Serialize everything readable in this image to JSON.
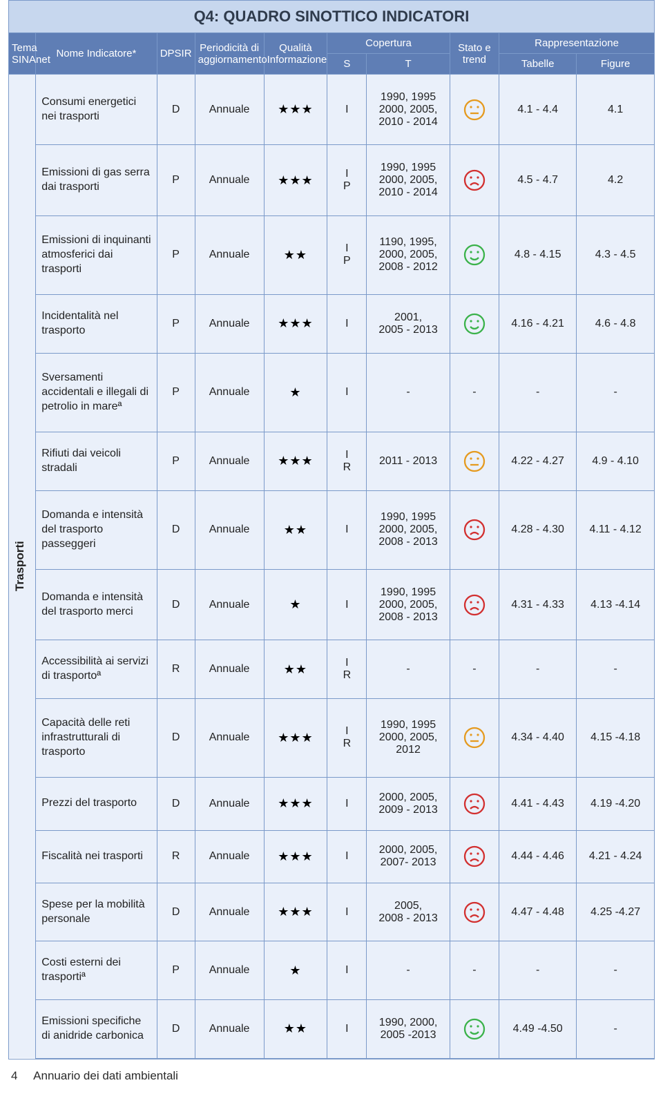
{
  "title": "Q4: QUADRO SINOTTICO INDICATORI",
  "headers": {
    "tema": "Tema SINAnet",
    "nome": "Nome Indicatore*",
    "dpsir": "DPSIR",
    "periodicita": "Periodicità di aggiornamento",
    "qualita": "Qualità Informazione",
    "copertura": "Copertura",
    "s": "S",
    "t": "T",
    "stato": "Stato e trend",
    "rappr": "Rappresentazione",
    "tabelle": "Tabelle",
    "figure": "Figure"
  },
  "theme": "Trasporti",
  "colors": {
    "good": "#3bb24a",
    "bad": "#d22f2f",
    "neutral": "#e59a1f"
  },
  "rows": [
    {
      "indicator": "Consumi energetici nei trasporti",
      "dpsir": "D",
      "period": "Annuale",
      "stars": 3,
      "s": "I",
      "t": "1990, 1995\n2000, 2005,\n2010 - 2014",
      "trend": "neutral",
      "tab": "4.1 - 4.4",
      "fig": "4.1"
    },
    {
      "indicator": "Emissioni di gas serra dai trasporti",
      "dpsir": "P",
      "period": "Annuale",
      "stars": 3,
      "s": "I\nP",
      "t": "1990, 1995\n2000, 2005,\n2010 - 2014",
      "trend": "bad",
      "tab": "4.5 - 4.7",
      "fig": "4.2"
    },
    {
      "indicator": "Emissioni di inquinanti atmosferici dai trasporti",
      "dpsir": "P",
      "period": "Annuale",
      "stars": 2,
      "s": "I\nP",
      "t": "1190, 1995,\n2000, 2005,\n2008 - 2012",
      "trend": "good",
      "tab": "4.8 - 4.15",
      "fig": "4.3 - 4.5"
    },
    {
      "indicator": "Incidentalità nel trasporto",
      "dpsir": "P",
      "period": "Annuale",
      "stars": 3,
      "s": "I",
      "t": "2001,\n2005 - 2013",
      "trend": "good",
      "tab": "4.16 - 4.21",
      "fig": "4.6 - 4.8"
    },
    {
      "indicator": "Sversamenti accidentali e illegali di petrolio in mareª",
      "dpsir": "P",
      "period": "Annuale",
      "stars": 1,
      "s": "I",
      "t": "-",
      "trend": "-",
      "tab": "-",
      "fig": "-"
    },
    {
      "indicator": "Rifiuti dai veicoli stradali",
      "dpsir": "P",
      "period": "Annuale",
      "stars": 3,
      "s": "I\nR",
      "t": "2011 - 2013",
      "trend": "neutral",
      "tab": "4.22 - 4.27",
      "fig": "4.9 - 4.10"
    },
    {
      "indicator": "Domanda e intensità del trasporto passeggeri",
      "dpsir": "D",
      "period": "Annuale",
      "stars": 2,
      "s": "I",
      "t": "1990, 1995\n2000, 2005,\n2008 - 2013",
      "trend": "bad",
      "tab": "4.28 - 4.30",
      "fig": "4.11 - 4.12"
    },
    {
      "indicator": "Domanda e intensità del trasporto merci",
      "dpsir": "D",
      "period": "Annuale",
      "stars": 1,
      "s": "I",
      "t": "1990, 1995\n2000, 2005,\n2008 - 2013",
      "trend": "bad",
      "tab": "4.31 - 4.33",
      "fig": "4.13 -4.14"
    },
    {
      "indicator": "Accessibilità ai servizi di trasportoª",
      "dpsir": "R",
      "period": "Annuale",
      "stars": 2,
      "s": "I\nR",
      "t": "-",
      "trend": "-",
      "tab": "-",
      "fig": "-"
    },
    {
      "indicator": "Capacità delle reti infrastrutturali di trasporto",
      "dpsir": "D",
      "period": "Annuale",
      "stars": 3,
      "s": "I\nR",
      "t": "1990, 1995\n2000, 2005,\n2012",
      "trend": "neutral",
      "tab": "4.34 - 4.40",
      "fig": "4.15 -4.18"
    },
    {
      "indicator": "Prezzi del trasporto",
      "dpsir": "D",
      "period": "Annuale",
      "stars": 3,
      "s": "I",
      "t": "2000, 2005,\n2009 - 2013",
      "trend": "bad",
      "tab": "4.41 - 4.43",
      "fig": "4.19 -4.20"
    },
    {
      "indicator": "Fiscalità nei trasporti",
      "dpsir": "R",
      "period": "Annuale",
      "stars": 3,
      "s": "I",
      "t": "2000, 2005,\n2007- 2013",
      "trend": "bad",
      "tab": "4.44 - 4.46",
      "fig": "4.21 - 4.24"
    },
    {
      "indicator": "Spese per la mobilità personale",
      "dpsir": "D",
      "period": "Annuale",
      "stars": 3,
      "s": "I",
      "t": "2005,\n2008 - 2013",
      "trend": "bad",
      "tab": "4.47 - 4.48",
      "fig": "4.25 -4.27"
    },
    {
      "indicator": "Costi esterni dei trasportiª",
      "dpsir": "P",
      "period": "Annuale",
      "stars": 1,
      "s": "I",
      "t": "-",
      "trend": "-",
      "tab": "-",
      "fig": "-"
    },
    {
      "indicator": "Emissioni specifiche di anidride carbonica",
      "dpsir": "D",
      "period": "Annuale",
      "stars": 2,
      "s": "I",
      "t": "1990, 2000,\n2005 -2013",
      "trend": "good",
      "tab": "4.49 -4.50",
      "fig": "-"
    }
  ],
  "footer": {
    "page": "4",
    "text": "Annuario dei dati ambientali"
  }
}
